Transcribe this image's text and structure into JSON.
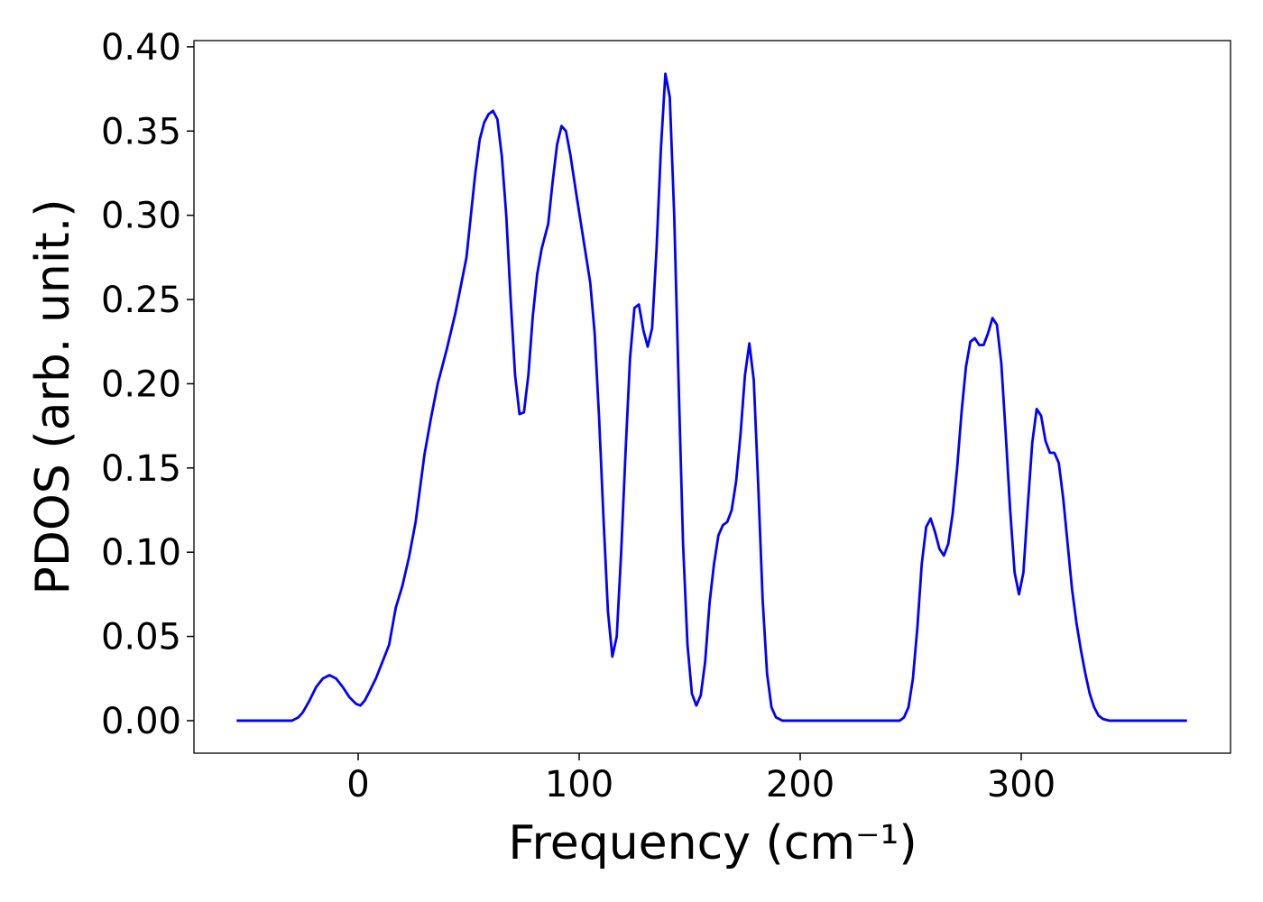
{
  "chart_data": {
    "type": "line",
    "xlabel": "Frequency (cm⁻¹)",
    "ylabel": "PDOS (arb. unit.)",
    "color": "#0000ff",
    "xlim": [
      -74.3,
      394.7
    ],
    "ylim": [
      -0.0193,
      0.4037
    ],
    "xticks": [
      0,
      100,
      200,
      300
    ],
    "yticks": [
      {
        "value": 0,
        "label": "0.00"
      },
      0.05,
      {
        "value": 0.1,
        "label": "0.10"
      },
      0.15,
      {
        "value": 0.2,
        "label": "0.20"
      },
      0.25,
      {
        "value": 0.3,
        "label": "0.30"
      },
      0.35,
      {
        "value": 0.4,
        "label": "0.40"
      }
    ],
    "x": [
      -55,
      -30,
      -27,
      -25,
      -22,
      -19,
      -16,
      -13,
      -10,
      -7,
      -4,
      -1,
      1,
      3,
      5,
      8,
      11,
      14,
      17,
      20,
      23,
      26,
      30,
      33,
      36,
      40,
      44,
      46,
      49,
      51,
      53,
      55,
      57,
      59,
      61,
      63,
      65,
      67,
      69,
      71,
      73,
      75,
      77,
      79,
      81,
      83,
      86,
      88,
      90,
      92,
      94,
      96,
      99,
      102,
      105,
      107,
      109,
      111,
      113,
      115,
      117,
      119,
      121,
      123,
      125,
      127,
      129,
      131,
      133,
      135,
      137,
      139,
      141,
      143,
      145,
      147,
      149,
      151,
      153,
      155,
      157,
      159,
      161,
      163,
      165,
      167,
      169,
      171,
      173,
      175,
      177,
      179,
      181,
      183,
      185,
      187,
      189,
      192,
      245,
      247,
      249,
      251,
      253,
      255,
      257,
      259,
      261,
      263,
      265,
      267,
      269,
      271,
      273,
      275,
      277,
      279,
      281,
      283,
      285,
      287,
      289,
      291,
      293,
      295,
      297,
      299,
      301,
      303,
      305,
      307,
      309,
      311,
      313,
      315,
      317,
      319,
      321,
      323,
      325,
      327,
      329,
      331,
      333,
      335,
      337,
      340,
      375
    ],
    "values": [
      0,
      0,
      0.002,
      0.005,
      0.012,
      0.02,
      0.025,
      0.027,
      0.025,
      0.02,
      0.014,
      0.01,
      0.009,
      0.012,
      0.017,
      0.025,
      0.035,
      0.045,
      0.067,
      0.08,
      0.097,
      0.118,
      0.158,
      0.18,
      0.2,
      0.22,
      0.242,
      0.255,
      0.275,
      0.3,
      0.325,
      0.345,
      0.355,
      0.36,
      0.362,
      0.357,
      0.335,
      0.3,
      0.25,
      0.205,
      0.182,
      0.183,
      0.205,
      0.24,
      0.265,
      0.28,
      0.295,
      0.32,
      0.342,
      0.353,
      0.35,
      0.336,
      0.31,
      0.285,
      0.26,
      0.23,
      0.18,
      0.12,
      0.065,
      0.038,
      0.05,
      0.1,
      0.16,
      0.215,
      0.245,
      0.247,
      0.232,
      0.222,
      0.233,
      0.28,
      0.34,
      0.384,
      0.37,
      0.3,
      0.2,
      0.105,
      0.045,
      0.016,
      0.009,
      0.015,
      0.035,
      0.07,
      0.093,
      0.11,
      0.116,
      0.118,
      0.125,
      0.142,
      0.17,
      0.205,
      0.224,
      0.202,
      0.14,
      0.072,
      0.028,
      0.008,
      0.002,
      0,
      0,
      0.002,
      0.008,
      0.025,
      0.055,
      0.093,
      0.115,
      0.12,
      0.112,
      0.102,
      0.098,
      0.105,
      0.123,
      0.15,
      0.183,
      0.21,
      0.225,
      0.227,
      0.223,
      0.223,
      0.23,
      0.239,
      0.235,
      0.212,
      0.17,
      0.125,
      0.088,
      0.075,
      0.088,
      0.128,
      0.165,
      0.185,
      0.181,
      0.166,
      0.159,
      0.159,
      0.153,
      0.132,
      0.105,
      0.078,
      0.058,
      0.042,
      0.028,
      0.016,
      0.008,
      0.003,
      0.001,
      0,
      0
    ]
  }
}
